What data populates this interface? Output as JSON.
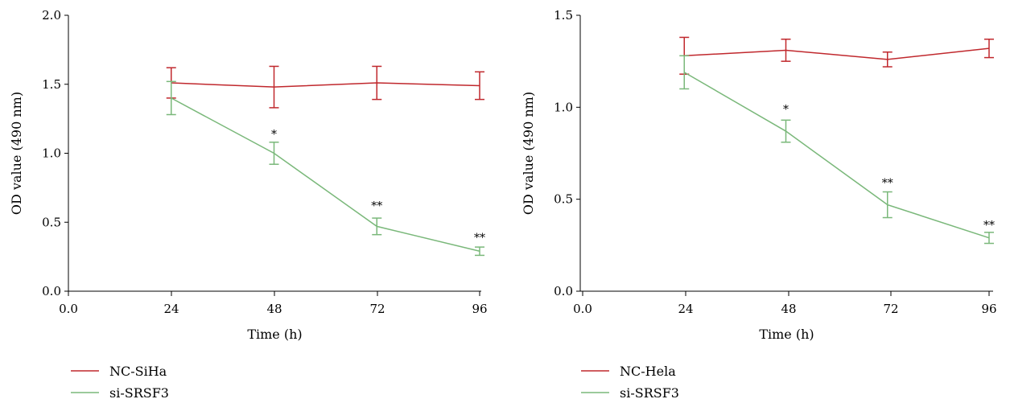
{
  "chart_data": [
    {
      "type": "line",
      "xlabel": "Time (h)",
      "ylabel": "OD value (490 nm)",
      "xlim": [
        0,
        96
      ],
      "ylim": [
        0,
        2.0
      ],
      "x_ticks": [
        "0.0",
        "24",
        "48",
        "72",
        "96"
      ],
      "y_ticks": [
        "0.0",
        "0.5",
        "1.0",
        "1.5",
        "2.0"
      ],
      "x": [
        24,
        48,
        72,
        96
      ],
      "series": [
        {
          "name": "NC-SiHa",
          "color": "#c0282d",
          "values": [
            1.51,
            1.48,
            1.51,
            1.49
          ],
          "errors": [
            0.11,
            0.15,
            0.12,
            0.1
          ]
        },
        {
          "name": "si-SRSF3",
          "color": "#7ab87a",
          "values": [
            1.4,
            1.0,
            0.47,
            0.29
          ],
          "errors": [
            0.12,
            0.08,
            0.06,
            0.03
          ]
        }
      ],
      "annotations": [
        {
          "x": 48,
          "y": 1.14,
          "text": "*"
        },
        {
          "x": 72,
          "y": 0.62,
          "text": "**"
        },
        {
          "x": 96,
          "y": 0.39,
          "text": "**"
        }
      ],
      "legend": "bottom-left"
    },
    {
      "type": "line",
      "xlabel": "Time (h)",
      "ylabel": "OD value (490 nm)",
      "xlim": [
        0,
        96
      ],
      "ylim": [
        0,
        1.5
      ],
      "x_ticks": [
        "0.0",
        "24",
        "48",
        "72",
        "96"
      ],
      "y_ticks": [
        "0.0",
        "0.5",
        "1.0",
        "1.5"
      ],
      "x": [
        24,
        48,
        72,
        96
      ],
      "series": [
        {
          "name": "NC-Hela",
          "color": "#c0282d",
          "values": [
            1.28,
            1.31,
            1.26,
            1.32
          ],
          "errors": [
            0.1,
            0.06,
            0.04,
            0.05
          ]
        },
        {
          "name": "si-SRSF3",
          "color": "#7ab87a",
          "values": [
            1.19,
            0.87,
            0.47,
            0.29
          ],
          "errors": [
            0.09,
            0.06,
            0.07,
            0.03
          ]
        }
      ],
      "annotations": [
        {
          "x": 48,
          "y": 0.99,
          "text": "*"
        },
        {
          "x": 72,
          "y": 0.59,
          "text": "**"
        },
        {
          "x": 96,
          "y": 0.36,
          "text": "**"
        }
      ],
      "legend": "bottom-left"
    }
  ]
}
